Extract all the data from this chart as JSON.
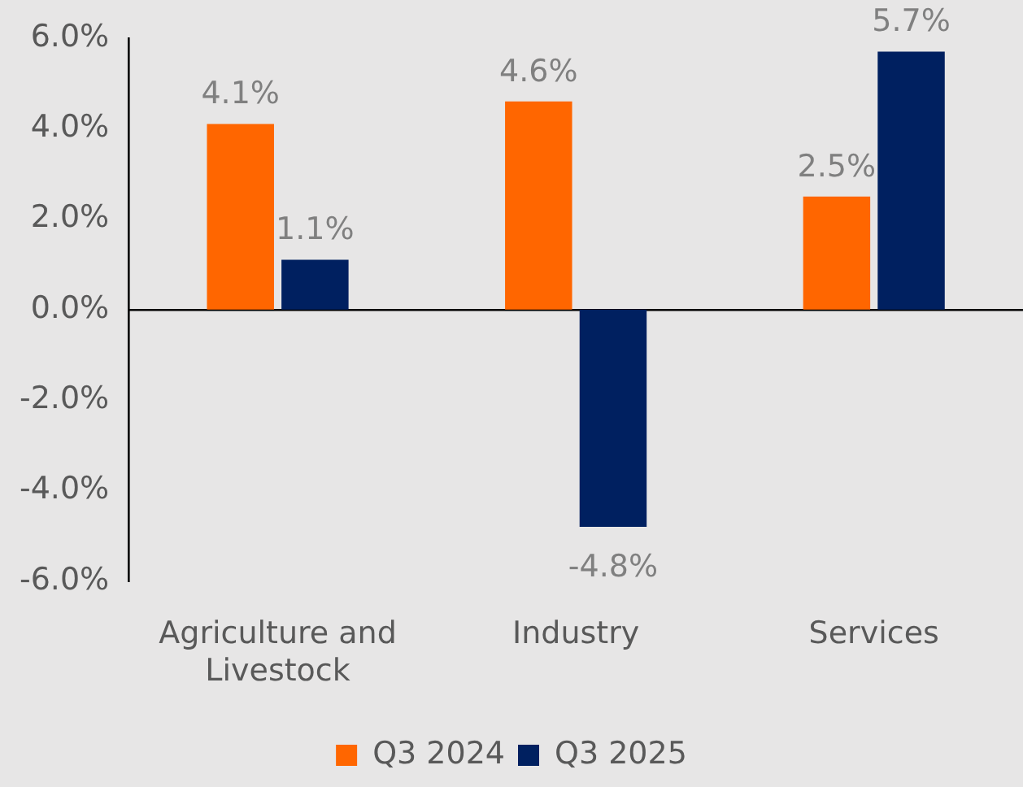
{
  "chart_data": {
    "type": "bar",
    "categories": [
      "Agriculture and Livestock",
      "Industry",
      "Services"
    ],
    "series": [
      {
        "name": "Q3 2024",
        "color": "#ff6600",
        "values": [
          4.1,
          4.6,
          2.5
        ],
        "value_labels": [
          "4.1%",
          "4.6%",
          "2.5%"
        ]
      },
      {
        "name": "Q3 2025",
        "color": "#002060",
        "values": [
          1.1,
          -4.8,
          5.7
        ],
        "value_labels": [
          "1.1%",
          "-4.8%",
          "5.7%"
        ]
      }
    ],
    "ylim": [
      -6,
      6
    ],
    "yticks": [
      {
        "value": -6,
        "label": "-6.0%"
      },
      {
        "value": -4,
        "label": "-4.0%"
      },
      {
        "value": -2,
        "label": "-2.0%"
      },
      {
        "value": 0,
        "label": "0.0%"
      },
      {
        "value": 2,
        "label": "2.0%"
      },
      {
        "value": 4,
        "label": "4.0%"
      },
      {
        "value": 6,
        "label": "6.0%"
      }
    ],
    "legend": "bottom"
  }
}
